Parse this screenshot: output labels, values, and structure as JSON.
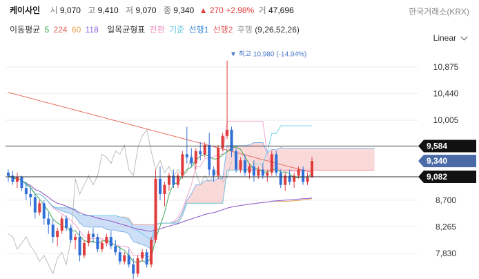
{
  "header": {
    "name": "케이사인",
    "open_label": "시",
    "open": "9,070",
    "high_label": "고",
    "high": "9,410",
    "low_label": "저",
    "low": "9,070",
    "close_label": "종",
    "close": "9,340",
    "change_arrow": "▲",
    "change": "270",
    "change_pct": "+2.98%",
    "volume_label": "거",
    "volume": "47,696",
    "exchange": "한국거래소(KRX)"
  },
  "legend": {
    "ma_label": "이동평균",
    "ma": [
      {
        "label": "5",
        "color": "#3aa655"
      },
      {
        "label": "224",
        "color": "#e05a4e"
      },
      {
        "label": "60",
        "color": "#e8a04a"
      },
      {
        "label": "118",
        "color": "#8a5ee0"
      }
    ],
    "ichimoku_label": "일목균형표",
    "ichimoku": [
      {
        "label": "전환",
        "color": "#f08fc0"
      },
      {
        "label": "기준",
        "color": "#57c7e0"
      },
      {
        "label": "선행1",
        "color": "#3a86d8"
      },
      {
        "label": "선행2",
        "color": "#e05a5a"
      },
      {
        "label": "후행",
        "color": "#9a9a9a"
      }
    ],
    "params": "(9,26,52,26)"
  },
  "scale_mode": "Linear",
  "chart_data": {
    "type": "candlestick",
    "y_ticks": [
      10875,
      10440,
      10005,
      8700,
      8265,
      7830
    ],
    "y_tick_labels": [
      "10,875",
      "10,440",
      "10,005",
      "8,700",
      "8,265",
      "7,830"
    ],
    "ylim": [
      7395,
      11160
    ],
    "max_annotation": {
      "text": "최고 10,980 (-14.94%)",
      "value": 10980
    },
    "price_lines": [
      {
        "value": 9584,
        "label": "9,584",
        "style": "dark"
      },
      {
        "value": 9340,
        "label": "9,340",
        "style": "current"
      },
      {
        "value": 9082,
        "label": "9,082",
        "style": "dark"
      }
    ],
    "colors": {
      "up": "#e03c3c",
      "down": "#2f6fd8"
    },
    "candles": [
      [
        9150,
        9200,
        9000,
        9100
      ],
      [
        9100,
        9180,
        8950,
        9000
      ],
      [
        9000,
        9150,
        8900,
        9080
      ],
      [
        9080,
        9100,
        8850,
        8900
      ],
      [
        8900,
        9000,
        8700,
        8800
      ],
      [
        8800,
        8900,
        8600,
        8750
      ],
      [
        8750,
        8800,
        8400,
        8500
      ],
      [
        8500,
        8700,
        8450,
        8650
      ],
      [
        8650,
        8700,
        8300,
        8400
      ],
      [
        8400,
        8500,
        8150,
        8300
      ],
      [
        8300,
        8400,
        8000,
        8100
      ],
      [
        8100,
        8250,
        7950,
        8200
      ],
      [
        8200,
        8450,
        8150,
        8400
      ],
      [
        8400,
        8450,
        8200,
        8250
      ],
      [
        8250,
        8300,
        8000,
        8050
      ],
      [
        8050,
        8150,
        7900,
        8100
      ],
      [
        8100,
        8200,
        7700,
        7800
      ],
      [
        7800,
        8050,
        7750,
        8000
      ],
      [
        8000,
        8200,
        7950,
        8150
      ],
      [
        8150,
        8250,
        8000,
        8100
      ],
      [
        8100,
        8150,
        7850,
        7900
      ],
      [
        7900,
        8050,
        7850,
        8000
      ],
      [
        8000,
        8150,
        7950,
        8100
      ],
      [
        8100,
        8200,
        7900,
        7950
      ],
      [
        7950,
        8050,
        7800,
        7850
      ],
      [
        7850,
        7950,
        7650,
        7700
      ],
      [
        7700,
        7850,
        7650,
        7800
      ],
      [
        7800,
        7900,
        7600,
        7650
      ],
      [
        7650,
        7750,
        7400,
        7500
      ],
      [
        7500,
        7800,
        7450,
        7750
      ],
      [
        7750,
        7900,
        7700,
        7850
      ],
      [
        7850,
        7900,
        7600,
        7650
      ],
      [
        7650,
        8100,
        7600,
        8050
      ],
      [
        8050,
        9200,
        8000,
        9050
      ],
      [
        9050,
        9250,
        8700,
        8800
      ],
      [
        8800,
        9000,
        8600,
        8950
      ],
      [
        8950,
        9150,
        8850,
        9100
      ],
      [
        9100,
        9200,
        8900,
        8950
      ],
      [
        8950,
        9150,
        8900,
        9100
      ],
      [
        9100,
        9500,
        9050,
        9450
      ],
      [
        9450,
        9900,
        9300,
        9400
      ],
      [
        9400,
        9550,
        9250,
        9300
      ],
      [
        9300,
        9550,
        9200,
        9500
      ],
      [
        9500,
        9650,
        9350,
        9450
      ],
      [
        9450,
        9650,
        9400,
        9600
      ],
      [
        9600,
        9800,
        9100,
        9200
      ],
      [
        9200,
        9250,
        9000,
        9100
      ],
      [
        9100,
        9600,
        9050,
        9550
      ],
      [
        9550,
        9800,
        9500,
        9750
      ],
      [
        9750,
        10980,
        9700,
        9850
      ],
      [
        9850,
        9900,
        9400,
        9500
      ],
      [
        9500,
        9550,
        9150,
        9200
      ],
      [
        9200,
        9400,
        9150,
        9350
      ],
      [
        9350,
        9450,
        9100,
        9150
      ],
      [
        9150,
        9300,
        9050,
        9250
      ],
      [
        9250,
        9350,
        9000,
        9100
      ],
      [
        9100,
        9250,
        9050,
        9200
      ],
      [
        9200,
        9300,
        9050,
        9100
      ],
      [
        9100,
        9200,
        9000,
        9150
      ],
      [
        9150,
        9500,
        9100,
        9450
      ],
      [
        9450,
        9500,
        9100,
        9150
      ],
      [
        9150,
        9200,
        8900,
        8950
      ],
      [
        8950,
        9150,
        8850,
        9100
      ],
      [
        9100,
        9200,
        8950,
        9000
      ],
      [
        9000,
        9150,
        8900,
        9100
      ],
      [
        9100,
        9250,
        9050,
        9200
      ],
      [
        9200,
        9250,
        8950,
        9000
      ],
      [
        9000,
        9150,
        8950,
        9070
      ],
      [
        9070,
        9410,
        9070,
        9340
      ]
    ]
  }
}
